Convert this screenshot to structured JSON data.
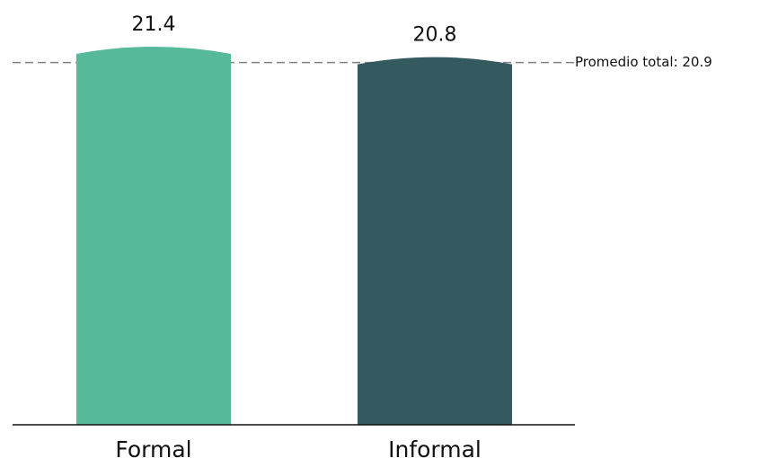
{
  "chart_data": {
    "type": "bar",
    "categories": [
      "Formal",
      "Informal"
    ],
    "values": [
      21.4,
      20.8
    ],
    "value_labels": [
      "21.4",
      "20.8"
    ],
    "reference_line": {
      "value": 20.9,
      "label": "Promedio total: 20.9",
      "style": "dashed",
      "color": "#808080"
    },
    "title": "",
    "xlabel": "",
    "ylabel": "",
    "ylim": [
      0,
      21.4
    ],
    "grid": false,
    "legend": "none",
    "colors": {
      "Formal": "#55B99A",
      "Informal": "#345A60",
      "axis": "#111111"
    }
  }
}
